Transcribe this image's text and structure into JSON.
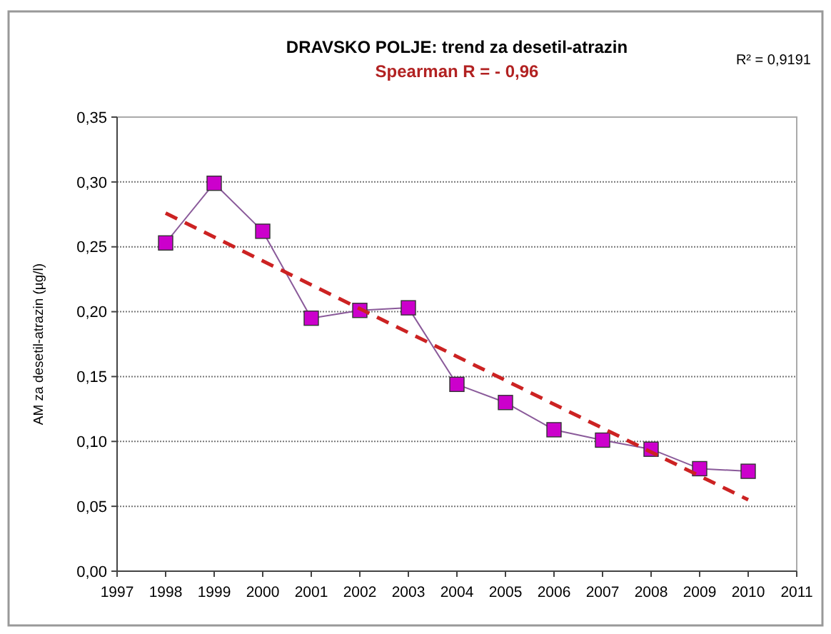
{
  "chart_data": {
    "type": "line",
    "title": "DRAVSKO POLJE: trend za desetil-atrazin",
    "subtitle": "Spearman R = - 0,96",
    "ylabel": "AM za desetil-atrazin (µg/l)",
    "annotations": [
      "R² = 0,9191"
    ],
    "x": [
      1998,
      1999,
      2000,
      2001,
      2002,
      2003,
      2004,
      2005,
      2006,
      2007,
      2008,
      2009,
      2010
    ],
    "series": [
      {
        "color": "#cc00cc",
        "marker": "square",
        "values": [
          0.253,
          0.299,
          0.262,
          0.195,
          0.201,
          0.203,
          0.144,
          0.13,
          0.109,
          0.101,
          0.094,
          0.079,
          0.077
        ]
      },
      {
        "type": "line",
        "color": "#cc2222",
        "marker": "none",
        "line_style": "dashed",
        "x": [
          1998,
          2010
        ],
        "values": [
          0.276,
          0.055
        ]
      }
    ],
    "xlim": [
      1997,
      2011
    ],
    "xticks": [
      1997,
      1998,
      1999,
      2000,
      2001,
      2002,
      2003,
      2004,
      2005,
      2006,
      2007,
      2008,
      2009,
      2010,
      2011
    ],
    "ylim": [
      0,
      0.35
    ],
    "yticks": [
      {
        "value": 0,
        "label": "0,00"
      },
      {
        "value": 0.05,
        "label": "0,05"
      },
      {
        "value": 0.1,
        "label": "0,10"
      },
      {
        "value": 0.15,
        "label": "0,15"
      },
      {
        "value": 0.2,
        "label": "0,20"
      },
      {
        "value": 0.25,
        "label": "0,25"
      },
      {
        "value": 0.3,
        "label": "0,30"
      },
      {
        "value": 0.35,
        "label": "0,35"
      }
    ],
    "grid": "y"
  }
}
